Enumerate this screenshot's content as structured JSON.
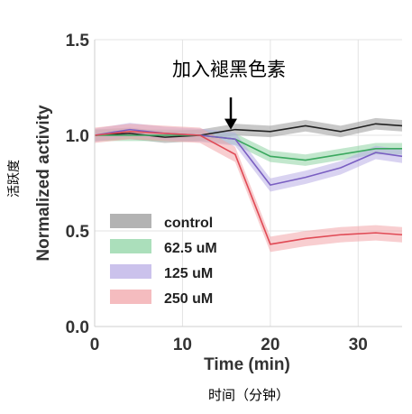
{
  "chart_data": {
    "type": "line",
    "xlabel": "Time (min)",
    "xlabel_sub": "时间（分钟）",
    "ylabel": "Normalized activity",
    "ylabel_sub": "活跃度",
    "xlim": [
      0,
      35
    ],
    "ylim": [
      0.0,
      1.5
    ],
    "xticks": [
      0,
      10,
      20,
      30
    ],
    "yticks": [
      0.0,
      0.5,
      1.0,
      1.5
    ],
    "grid": true,
    "legend_position": "lower-left",
    "annotation": {
      "text": "加入褪黑色素",
      "x": 15.5,
      "arrow_tip_y": 1.03
    },
    "x": [
      0,
      4,
      8,
      12,
      16,
      20,
      24,
      28,
      32,
      35
    ],
    "series": [
      {
        "name": "control",
        "color": "#222222",
        "band_color": "#9a9a9a",
        "values": [
          1.0,
          1.01,
          0.99,
          1.0,
          1.03,
          1.02,
          1.05,
          1.02,
          1.06,
          1.05
        ],
        "band": 0.03
      },
      {
        "name": "62.5 uM",
        "color": "#3aa85e",
        "band_color": "#8fd4a4",
        "values": [
          1.0,
          1.0,
          1.0,
          1.0,
          0.98,
          0.89,
          0.87,
          0.9,
          0.93,
          0.93
        ],
        "band": 0.03
      },
      {
        "name": "125 uM",
        "color": "#7a5fc2",
        "band_color": "#b9aee6",
        "values": [
          1.0,
          1.03,
          1.01,
          1.0,
          0.98,
          0.74,
          0.78,
          0.83,
          0.91,
          0.89
        ],
        "band": 0.035
      },
      {
        "name": "250 uM",
        "color": "#e04a55",
        "band_color": "#f2a5aa",
        "values": [
          1.0,
          1.02,
          1.01,
          1.0,
          0.9,
          0.43,
          0.46,
          0.48,
          0.49,
          0.48
        ],
        "band": 0.04
      }
    ]
  }
}
